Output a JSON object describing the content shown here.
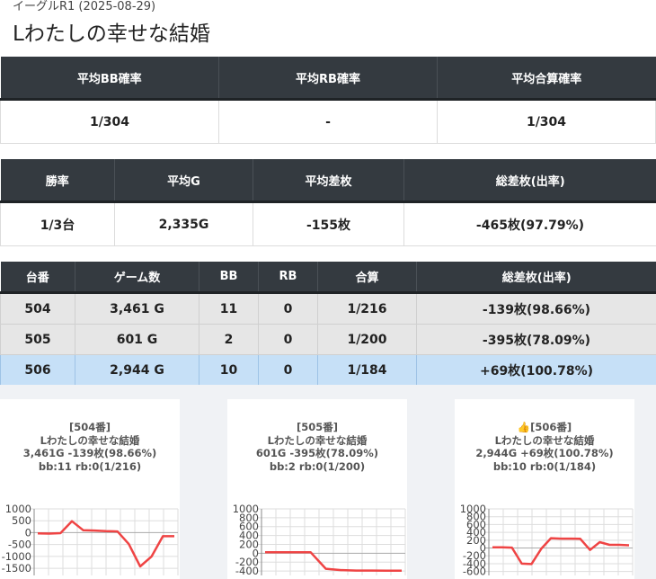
{
  "header": {
    "meta": "イーグルR1 (2025-08-29)",
    "title": "Lわたしの幸せな結婚"
  },
  "summary": {
    "headers": [
      "平均BB確率",
      "平均RB確率",
      "平均合算確率"
    ],
    "values": [
      "1/304",
      "-",
      "1/304"
    ]
  },
  "stats": {
    "headers": [
      "勝率",
      "平均G",
      "平均差枚",
      "総差枚(出率)"
    ],
    "values": [
      "1/3台",
      "2,335G",
      "-155枚",
      "-465枚(97.79%)"
    ]
  },
  "machines": {
    "headers": [
      "台番",
      "ゲーム数",
      "BB",
      "RB",
      "合算",
      "総差枚(出率)"
    ],
    "rows": [
      [
        "504",
        "3,461 G",
        "11",
        "0",
        "1/216",
        "-139枚(98.66%)"
      ],
      [
        "505",
        "601 G",
        "2",
        "0",
        "1/200",
        "-395枚(78.09%)"
      ],
      [
        "506",
        "2,944 G",
        "10",
        "0",
        "1/184",
        "+69枚(100.78%)"
      ]
    ],
    "highlighted_row": 2,
    "highlight_color": "#c6e0f7"
  },
  "panels": [
    {
      "lines": [
        "[504番]",
        "Lわたしの幸せな結婚",
        "3,461G -139枚(98.66%)",
        "bb:11 rb:0(1/216)"
      ],
      "line_color": "#ef4444"
    },
    {
      "lines": [
        "[505番]",
        "Lわたしの幸せな結婚",
        "601G -395枚(78.09%)",
        "bb:2 rb:0(1/200)"
      ],
      "line_color": "#ef4444"
    },
    {
      "lines": [
        "👍[506番]",
        "Lわたしの幸せな結婚",
        "2,944G +69枚(100.78%)",
        "bb:10 rb:0(1/184)"
      ],
      "line_color": "#ef4444"
    }
  ],
  "chart_data": [
    {
      "type": "line",
      "ylim": [
        -1800,
        1000
      ],
      "yticks": [
        1000,
        500,
        0,
        -500,
        -1000,
        -1500
      ],
      "grid": true,
      "values": [
        -30,
        -40,
        -20,
        480,
        100,
        90,
        60,
        50,
        -480,
        -1420,
        -1000,
        -150,
        -150
      ]
    },
    {
      "type": "line",
      "ylim": [
        -500,
        1000
      ],
      "yticks": [
        1000,
        800,
        600,
        400,
        200,
        0,
        -200,
        -400
      ],
      "grid": true,
      "values": [
        20,
        20,
        20,
        20,
        -350,
        -380,
        -390,
        -390,
        -395,
        -395
      ]
    },
    {
      "type": "line",
      "ylim": [
        -700,
        1000
      ],
      "yticks": [
        1000,
        800,
        600,
        400,
        200,
        0,
        -200,
        -400,
        -600
      ],
      "grid": true,
      "values": [
        20,
        20,
        10,
        -400,
        -410,
        -20,
        250,
        240,
        240,
        235,
        -50,
        150,
        80,
        80,
        70
      ]
    }
  ]
}
